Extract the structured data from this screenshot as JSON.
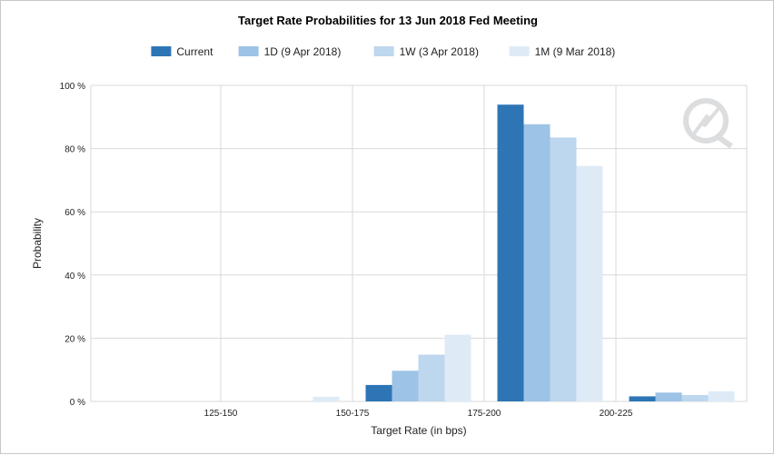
{
  "chart_data": {
    "type": "bar",
    "title": "Target Rate Probabilities for 13 Jun 2018 Fed Meeting",
    "xlabel": "Target Rate (in bps)",
    "ylabel": "Probability",
    "ylim": [
      0,
      100
    ],
    "yticks": [
      "0 %",
      "20 %",
      "40 %",
      "60 %",
      "80 %",
      "100 %"
    ],
    "categories": [
      "125-150",
      "150-175",
      "175-200",
      "200-225"
    ],
    "series": [
      {
        "name": "Current",
        "color": "#2e75b6",
        "values": [
          0,
          5.2,
          93.9,
          1.6
        ]
      },
      {
        "name": "1D (9 Apr 2018)",
        "color": "#9dc3e6",
        "values": [
          0,
          9.7,
          87.7,
          2.8
        ]
      },
      {
        "name": "1W (3 Apr 2018)",
        "color": "#bdd7ee",
        "values": [
          0,
          14.8,
          83.5,
          2.0
        ]
      },
      {
        "name": "1M (9 Mar 2018)",
        "color": "#deebf7",
        "values": [
          1.5,
          21.1,
          74.5,
          3.2
        ]
      }
    ],
    "grid": true,
    "legend_position": "top"
  },
  "watermark_icon": "cme-fedwatch-logo-icon"
}
